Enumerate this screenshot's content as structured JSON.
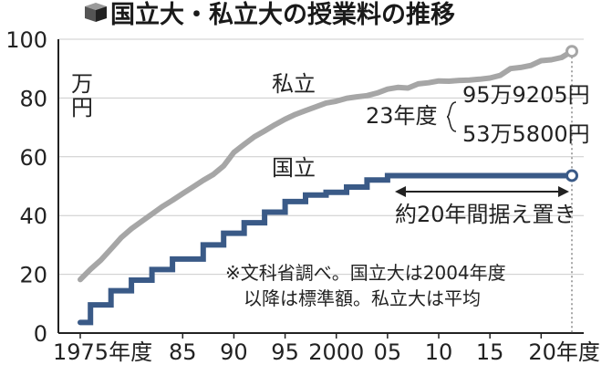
{
  "title": "国立大・私立大の授業料の推移",
  "chart_data": {
    "type": "line",
    "title": "国立大・私立大の授業料の推移",
    "ylabel": "万円",
    "ylim": [
      0,
      100
    ],
    "xlim": [
      1975,
      2023
    ],
    "y_ticks": [
      "0",
      "20",
      "40",
      "60",
      "80",
      "100"
    ],
    "x_ticks": [
      {
        "value": 1975,
        "label": "1975年度"
      },
      {
        "value": 1985,
        "label": "85"
      },
      {
        "value": 1990,
        "label": "90"
      },
      {
        "value": 1995,
        "label": "95"
      },
      {
        "value": 2000,
        "label": "2000"
      },
      {
        "value": 2005,
        "label": "05"
      },
      {
        "value": 2010,
        "label": "10"
      },
      {
        "value": 2015,
        "label": "15"
      },
      {
        "value": 2020,
        "label": "20年度"
      }
    ],
    "grid": true,
    "series": [
      {
        "name": "私立",
        "color": "#a6a6a6",
        "x": [
          1975,
          1976,
          1977,
          1978,
          1979,
          1980,
          1981,
          1982,
          1983,
          1984,
          1985,
          1986,
          1987,
          1988,
          1989,
          1990,
          1991,
          1992,
          1993,
          1994,
          1995,
          1996,
          1997,
          1998,
          1999,
          2000,
          2001,
          2002,
          2003,
          2004,
          2005,
          2006,
          2007,
          2008,
          2009,
          2010,
          2011,
          2012,
          2013,
          2014,
          2015,
          2016,
          2017,
          2018,
          2019,
          2020,
          2021,
          2022,
          2023
        ],
        "values": [
          18.2,
          21.7,
          24.8,
          28.6,
          32.5,
          35.5,
          38.0,
          40.5,
          43.0,
          45.2,
          47.5,
          49.7,
          52.0,
          54.0,
          56.9,
          61.5,
          64.2,
          66.8,
          68.8,
          70.9,
          72.8,
          74.4,
          75.7,
          77.0,
          78.3,
          78.9,
          79.9,
          80.4,
          80.8,
          81.7,
          83.0,
          83.6,
          83.4,
          84.8,
          85.2,
          85.8,
          85.7,
          86.0,
          86.1,
          86.4,
          86.8,
          87.7,
          90.0,
          90.4,
          91.1,
          92.7,
          93.0,
          93.8,
          95.9
        ]
      },
      {
        "name": "国立",
        "color": "#3a5a87",
        "x": [
          1975,
          1976,
          1977,
          1978,
          1979,
          1980,
          1981,
          1982,
          1983,
          1984,
          1985,
          1986,
          1987,
          1988,
          1989,
          1990,
          1991,
          1992,
          1993,
          1994,
          1995,
          1996,
          1997,
          1998,
          1999,
          2000,
          2001,
          2002,
          2003,
          2004,
          2005,
          2023
        ],
        "values": [
          3.6,
          9.6,
          9.6,
          14.4,
          14.4,
          18.0,
          18.0,
          21.6,
          21.6,
          25.2,
          25.2,
          25.2,
          30.0,
          30.0,
          33.96,
          33.96,
          37.56,
          37.56,
          41.16,
          41.16,
          44.76,
          44.76,
          46.98,
          46.98,
          47.88,
          47.88,
          49.68,
          49.68,
          52.08,
          52.08,
          53.58,
          53.58
        ]
      }
    ],
    "annotations": {
      "private_label": "私立",
      "national_label": "国立",
      "year_label": "23年度",
      "private_value": "95万9205円",
      "national_value": "53万5800円",
      "arrow_label": "約20年間据え置き",
      "note_line1": "※文科省調べ。国立大は2004年度",
      "note_line2": "以降は標準額。私立大は平均"
    }
  }
}
